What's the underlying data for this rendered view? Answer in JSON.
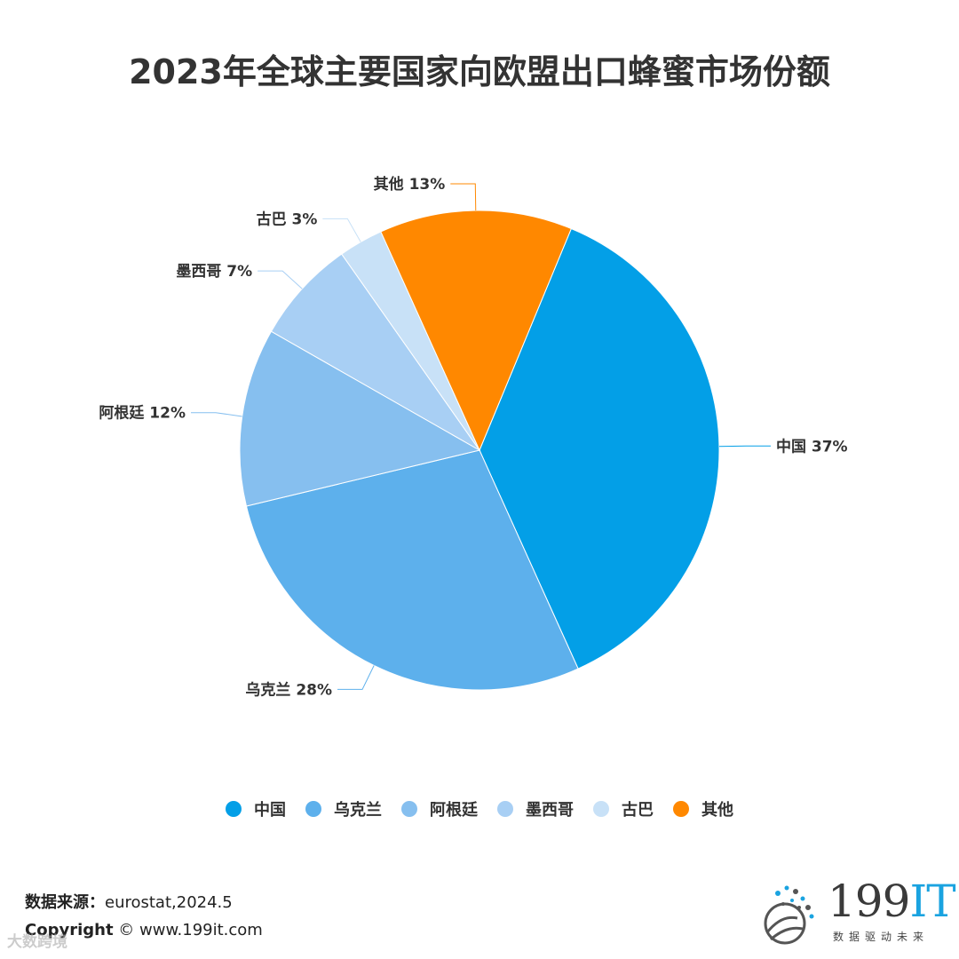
{
  "title": "2023年全球主要国家向欧盟出口蜂蜜市场份额",
  "chart_data": {
    "type": "pie",
    "title": "2023年全球主要国家向欧盟出口蜂蜜市场份额",
    "unit": "%",
    "legend_position": "bottom",
    "slices": [
      {
        "name": "中国",
        "value": 37,
        "color": "#039fe7",
        "label": "中国 37%"
      },
      {
        "name": "乌克兰",
        "value": 28,
        "color": "#5db0ec",
        "label": "乌克兰 28%"
      },
      {
        "name": "阿根廷",
        "value": 12,
        "color": "#86bfef",
        "label": "阿根廷 12%"
      },
      {
        "name": "墨西哥",
        "value": 7,
        "color": "#a8cff4",
        "label": "墨西哥 7%"
      },
      {
        "name": "古巴",
        "value": 3,
        "color": "#c8e1f7",
        "label": "古巴 3%"
      },
      {
        "name": "其他",
        "value": 13,
        "color": "#ff8800",
        "label": "其他 13%"
      }
    ]
  },
  "legend": {
    "items": [
      {
        "label": "中国",
        "color": "#039fe7"
      },
      {
        "label": "乌克兰",
        "color": "#5db0ec"
      },
      {
        "label": "阿根廷",
        "color": "#86bfef"
      },
      {
        "label": "墨西哥",
        "color": "#a8cff4"
      },
      {
        "label": "古巴",
        "color": "#c8e1f7"
      },
      {
        "label": "其他",
        "color": "#ff8800"
      }
    ]
  },
  "footer": {
    "source_label": "数据来源：",
    "source_value": "eurostat,2024.5",
    "copyright_label": "Copyright",
    "copyright_value": "© www.199it.com"
  },
  "watermark": "大数跨境",
  "logo": {
    "text_main": "199",
    "text_it": "IT",
    "subtitle": "数据驱动未来"
  }
}
